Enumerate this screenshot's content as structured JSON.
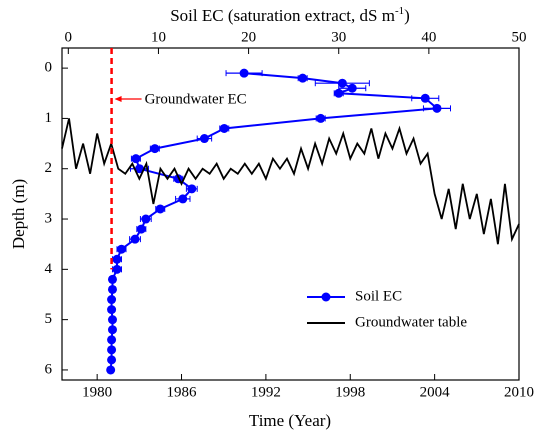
{
  "chart_data": {
    "type": "line",
    "xlabel": "Time (Year)",
    "ylabel": "Depth (m)",
    "x2label_parts": [
      "Soil EC (saturation extract, dS m",
      "-1",
      ")"
    ],
    "xlim": [
      1977.5,
      2010
    ],
    "xticks": [
      1980,
      1986,
      1992,
      1998,
      2004,
      2010
    ],
    "x2lim": [
      -0.7,
      50
    ],
    "x2ticks": [
      0,
      10,
      20,
      30,
      40,
      50
    ],
    "ylim": [
      -0.4,
      6.2
    ],
    "y_inverted": true,
    "yticks": [
      0,
      1,
      2,
      3,
      4,
      5,
      6
    ],
    "legend": "lower right",
    "series": [
      {
        "name": "Soil EC",
        "color": "#0000ff",
        "axis": "x2",
        "depth": [
          0.1,
          0.2,
          0.3,
          0.4,
          0.5,
          0.6,
          0.8,
          1.0,
          1.2,
          1.4,
          1.6,
          1.8,
          2.0,
          2.2,
          2.4,
          2.6,
          2.8,
          3.0,
          3.2,
          3.4,
          3.6,
          3.8,
          4.0,
          4.2,
          4.4,
          4.6,
          4.8,
          5.0,
          5.2,
          5.4,
          5.6,
          5.8,
          6.0
        ],
        "values": [
          19.5,
          26,
          30.4,
          31.5,
          30,
          39.6,
          40.9,
          28,
          17.3,
          15.1,
          9.6,
          7.5,
          7.9,
          12.2,
          13.7,
          12.7,
          10.2,
          8.6,
          8.1,
          7.4,
          5.9,
          5.4,
          5.4,
          4.9,
          4.9,
          4.8,
          4.8,
          4.9,
          4.9,
          4.8,
          4.8,
          4.8,
          4.7
        ],
        "errors": [
          2,
          0.5,
          3,
          1.5,
          0.5,
          1.5,
          1.5,
          0.5,
          0.5,
          0.8,
          0.5,
          0.5,
          1,
          0.5,
          0.6,
          0.8,
          0.5,
          0.6,
          0.5,
          0.6,
          0.5,
          0.5,
          0.5,
          0.3,
          0.3,
          0.3,
          0.3,
          0.3,
          0.3,
          0.3,
          0.3,
          0.3,
          0.3
        ]
      },
      {
        "name": "Groundwater table",
        "color": "#000000",
        "x": [
          1977.5,
          1978,
          1978.5,
          1979,
          1979.5,
          1980,
          1980.5,
          1981,
          1981.5,
          1982,
          1982.5,
          1983,
          1983.5,
          1984,
          1984.5,
          1985,
          1985.5,
          1986,
          1986.5,
          1987,
          1987.5,
          1988,
          1988.5,
          1989,
          1989.5,
          1990,
          1990.5,
          1991,
          1991.5,
          1992,
          1992.5,
          1993,
          1993.5,
          1994,
          1994.5,
          1995,
          1995.5,
          1996,
          1996.5,
          1997,
          1997.5,
          1998,
          1998.5,
          1999,
          1999.5,
          2000,
          2000.5,
          2001,
          2001.5,
          2002,
          2002.5,
          2003,
          2003.5,
          2004,
          2004.5,
          2005,
          2005.5,
          2006,
          2006.5,
          2007,
          2007.5,
          2008,
          2008.5,
          2009,
          2009.5,
          2010
        ],
        "values": [
          1.6,
          1.0,
          2.0,
          1.5,
          2.1,
          1.3,
          1.9,
          1.5,
          2.0,
          2.1,
          1.9,
          2.2,
          1.9,
          2.7,
          2.0,
          2.2,
          2.0,
          2.3,
          2.0,
          2.2,
          2.0,
          2.1,
          1.9,
          2.2,
          2.0,
          2.1,
          1.9,
          2.1,
          1.9,
          2.2,
          1.8,
          2.0,
          1.8,
          2.1,
          1.6,
          2.0,
          1.5,
          1.9,
          1.4,
          1.7,
          1.3,
          1.8,
          1.5,
          1.7,
          1.2,
          1.8,
          1.3,
          1.6,
          1.2,
          1.7,
          1.4,
          1.9,
          1.7,
          2.5,
          3.0,
          2.4,
          3.2,
          2.3,
          3.0,
          2.5,
          3.3,
          2.6,
          3.5,
          2.3,
          3.4,
          3.1
        ]
      }
    ],
    "annotation": {
      "text": "Groundwater EC",
      "value": 4.8,
      "depth_end": 4.0,
      "color": "#ff0000"
    }
  }
}
